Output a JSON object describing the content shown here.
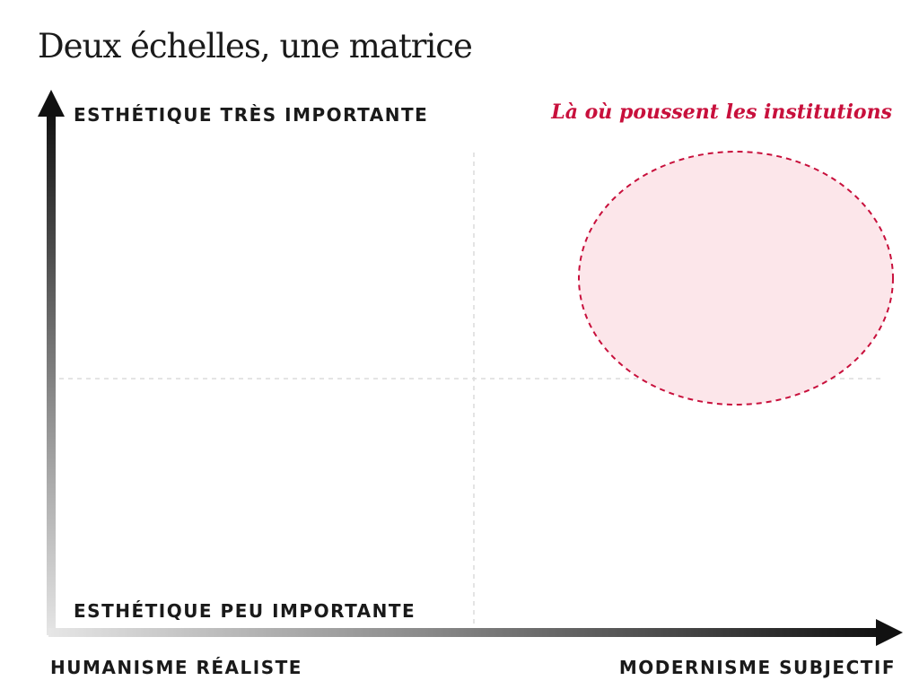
{
  "title": "Deux échelles, une matrice",
  "axes": {
    "y_top": "ESTHÉTIQUE TRÈS IMPORTANTE",
    "y_bottom": "ESTHÉTIQUE PEU IMPORTANTE",
    "x_left": "HUMANISME RÉALISTE",
    "x_right": "MODERNISME SUBJECTIF"
  },
  "highlight": {
    "label": "Là où poussent les institutions",
    "color": "#c8103c",
    "fill": "#fce6ea"
  }
}
